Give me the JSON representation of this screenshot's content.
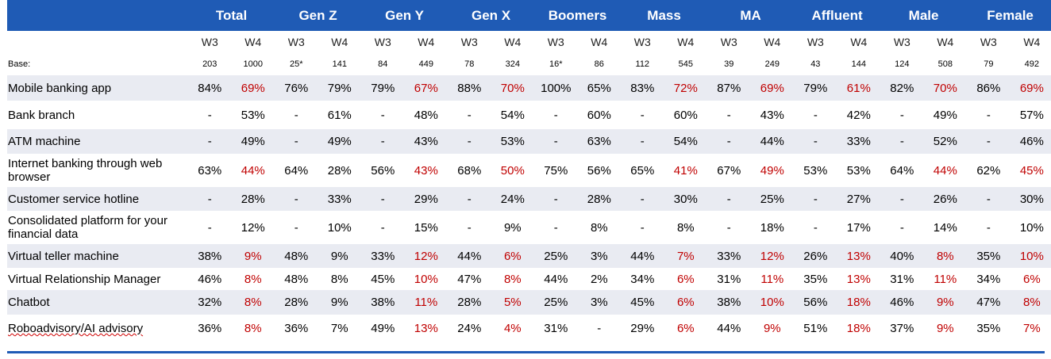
{
  "segments": [
    "Total",
    "Gen Z",
    "Gen Y",
    "Gen X",
    "Boomers",
    "Mass",
    "MA",
    "Affluent",
    "Male",
    "Female"
  ],
  "waves": [
    "W3",
    "W4"
  ],
  "base_label": "Base:",
  "base": [
    "203",
    "1000",
    "25*",
    "141",
    "84",
    "449",
    "78",
    "324",
    "16*",
    "86",
    "112",
    "545",
    "39",
    "249",
    "43",
    "144",
    "124",
    "508",
    "79",
    "492"
  ],
  "rows": [
    {
      "label": "Mobile banking app",
      "values": [
        "84%",
        "69%",
        "76%",
        "79%",
        "79%",
        "67%",
        "88%",
        "70%",
        "100%",
        "65%",
        "83%",
        "72%",
        "87%",
        "69%",
        "79%",
        "61%",
        "82%",
        "70%",
        "86%",
        "69%"
      ],
      "red": [
        1,
        5,
        7,
        11,
        13,
        15,
        17,
        19
      ]
    },
    {
      "label": "Bank branch",
      "values": [
        "-",
        "53%",
        "-",
        "61%",
        "-",
        "48%",
        "-",
        "54%",
        "-",
        "60%",
        "-",
        "60%",
        "-",
        "43%",
        "-",
        "42%",
        "-",
        "49%",
        "-",
        "57%"
      ],
      "red": []
    },
    {
      "label": "ATM machine",
      "values": [
        "-",
        "49%",
        "-",
        "49%",
        "-",
        "43%",
        "-",
        "53%",
        "-",
        "63%",
        "-",
        "54%",
        "-",
        "44%",
        "-",
        "33%",
        "-",
        "52%",
        "-",
        "46%"
      ],
      "red": []
    },
    {
      "label": "Internet banking through web browser",
      "values": [
        "63%",
        "44%",
        "64%",
        "28%",
        "56%",
        "43%",
        "68%",
        "50%",
        "75%",
        "56%",
        "65%",
        "41%",
        "67%",
        "49%",
        "53%",
        "53%",
        "64%",
        "44%",
        "62%",
        "45%"
      ],
      "red": [
        1,
        5,
        7,
        11,
        13,
        17,
        19
      ]
    },
    {
      "label": "Customer service hotline",
      "values": [
        "-",
        "28%",
        "-",
        "33%",
        "-",
        "29%",
        "-",
        "24%",
        "-",
        "28%",
        "-",
        "30%",
        "-",
        "25%",
        "-",
        "27%",
        "-",
        "26%",
        "-",
        "30%"
      ],
      "red": []
    },
    {
      "label": "Consolidated platform for your financial data",
      "values": [
        "-",
        "12%",
        "-",
        "10%",
        "-",
        "15%",
        "-",
        "9%",
        "-",
        "8%",
        "-",
        "8%",
        "-",
        "18%",
        "-",
        "17%",
        "-",
        "14%",
        "-",
        "10%"
      ],
      "red": []
    },
    {
      "label": "Virtual teller machine",
      "values": [
        "38%",
        "9%",
        "48%",
        "9%",
        "33%",
        "12%",
        "44%",
        "6%",
        "25%",
        "3%",
        "44%",
        "7%",
        "33%",
        "12%",
        "26%",
        "13%",
        "40%",
        "8%",
        "35%",
        "10%"
      ],
      "red": [
        1,
        5,
        7,
        11,
        13,
        15,
        17,
        19
      ]
    },
    {
      "label": "Virtual Relationship Manager",
      "values": [
        "46%",
        "8%",
        "48%",
        "8%",
        "45%",
        "10%",
        "47%",
        "8%",
        "44%",
        "2%",
        "34%",
        "6%",
        "31%",
        "11%",
        "35%",
        "13%",
        "31%",
        "11%",
        "34%",
        "6%"
      ],
      "red": [
        1,
        5,
        7,
        11,
        13,
        15,
        17,
        19
      ]
    },
    {
      "label": "Chatbot",
      "values": [
        "32%",
        "8%",
        "28%",
        "9%",
        "38%",
        "11%",
        "28%",
        "5%",
        "25%",
        "3%",
        "45%",
        "6%",
        "38%",
        "10%",
        "56%",
        "18%",
        "46%",
        "9%",
        "47%",
        "8%"
      ],
      "red": [
        1,
        5,
        7,
        11,
        13,
        15,
        17,
        19
      ]
    },
    {
      "label": "Roboadvisory/AI advisory",
      "values": [
        "36%",
        "8%",
        "36%",
        "7%",
        "49%",
        "13%",
        "24%",
        "4%",
        "31%",
        "-",
        "29%",
        "6%",
        "44%",
        "9%",
        "51%",
        "18%",
        "37%",
        "9%",
        "35%",
        "7%"
      ],
      "red": [
        1,
        5,
        7,
        11,
        13,
        15,
        17,
        19
      ]
    }
  ],
  "colors": {
    "header_bg": "#1f5bb5",
    "row_shade": "#e9ebf2",
    "highlight_red": "#c00000"
  }
}
